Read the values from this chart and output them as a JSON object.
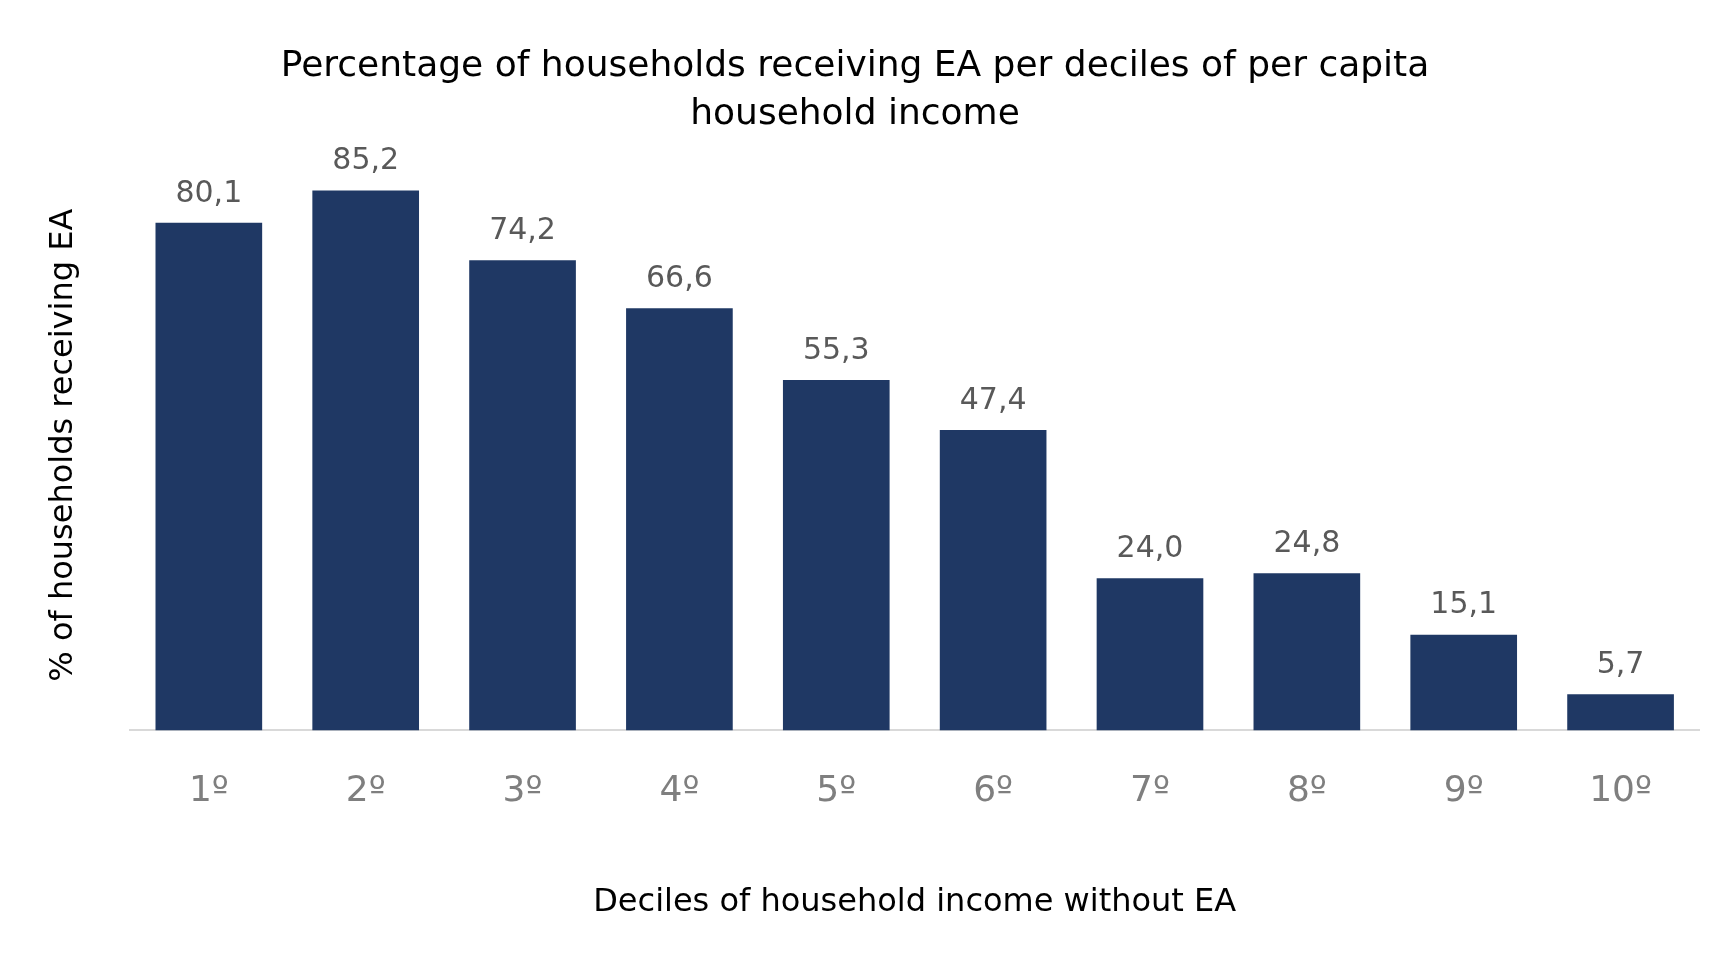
{
  "chart_data": {
    "type": "bar",
    "title": "Percentage of households receiving EA per deciles of per capita household income",
    "xlabel": "Deciles of household income without EA",
    "ylabel": "% of households receiving EA",
    "categories": [
      "1º",
      "2º",
      "3º",
      "4º",
      "5º",
      "6º",
      "7º",
      "8º",
      "9º",
      "10º"
    ],
    "values": [
      80.1,
      85.2,
      74.2,
      66.6,
      55.3,
      47.4,
      24.0,
      24.8,
      15.1,
      5.7
    ],
    "value_labels": [
      "80,1",
      "85,2",
      "74,2",
      "66,6",
      "55,3",
      "47,4",
      "24,0",
      "24,8",
      "15,1",
      "5,7"
    ],
    "color": "#1f3864",
    "grid": false,
    "legend": false,
    "tick_labels": "x"
  }
}
